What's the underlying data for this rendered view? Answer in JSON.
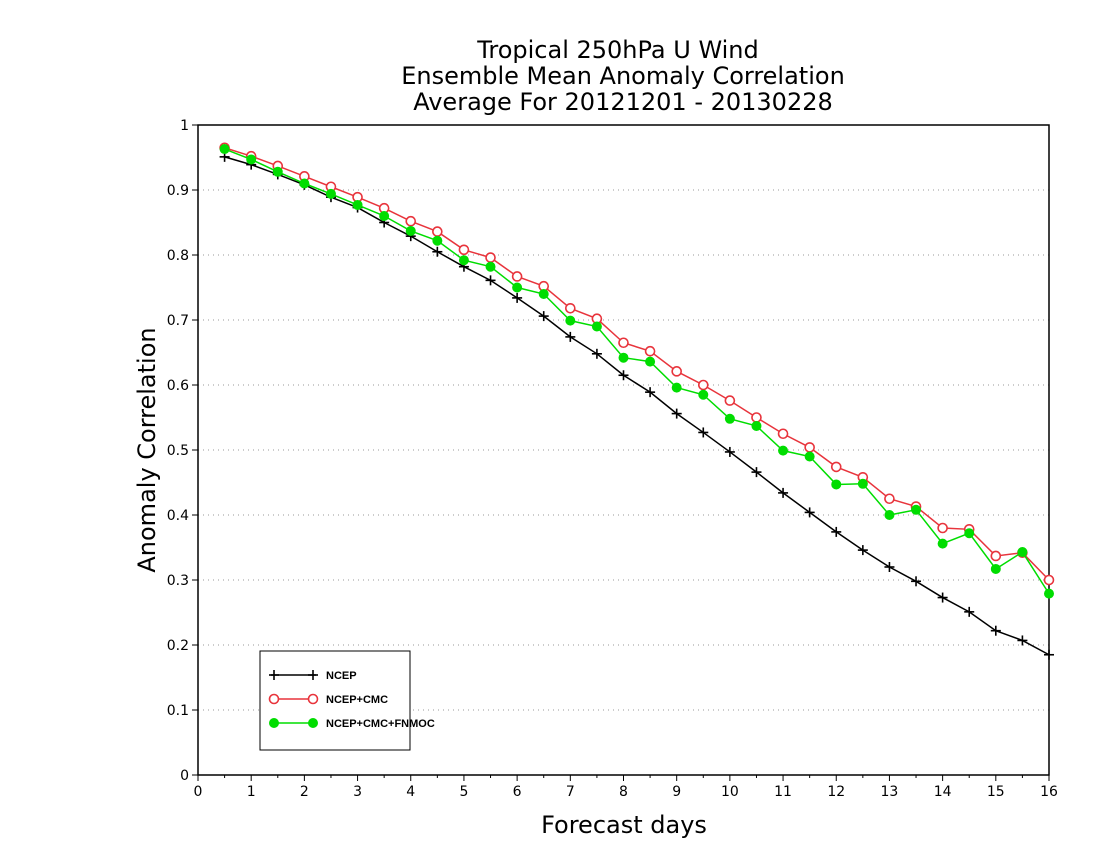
{
  "chart_data": {
    "type": "line",
    "title": [
      "Tropical 250hPa U Wind",
      "Ensemble Mean Anomaly Correlation",
      "Average For 20121201 - 20130228"
    ],
    "xlabel": "Forecast days",
    "ylabel": "Anomaly Correlation",
    "xlim": [
      0,
      16
    ],
    "ylim": [
      0,
      1
    ],
    "xticks": [
      0,
      1,
      2,
      3,
      4,
      5,
      6,
      7,
      8,
      9,
      10,
      11,
      12,
      13,
      14,
      15,
      16
    ],
    "xtick_labels": [
      "0",
      "1",
      "2",
      "3",
      "4",
      "5",
      "6",
      "7",
      "8",
      "9",
      "10",
      "11",
      "12",
      "13",
      "14",
      "15",
      "16"
    ],
    "yticks": [
      0,
      0.1,
      0.2,
      0.3,
      0.4,
      0.5,
      0.6,
      0.7,
      0.8,
      0.9,
      1
    ],
    "ytick_labels": [
      "0",
      "0.1",
      "0.2",
      "0.3",
      "0.4",
      "0.5",
      "0.6",
      "0.7",
      "0.8",
      "0.9",
      "1"
    ],
    "grid": "horizontal dotted",
    "legend_position": "bottom-left",
    "x": [
      0.5,
      1,
      1.5,
      2,
      2.5,
      3,
      3.5,
      4,
      4.5,
      5,
      5.5,
      6,
      6.5,
      7,
      7.5,
      8,
      8.5,
      9,
      9.5,
      10,
      10.5,
      11,
      11.5,
      12,
      12.5,
      13,
      13.5,
      14,
      14.5,
      15,
      15.5,
      16
    ],
    "series": [
      {
        "name": "NCEP",
        "color": "#000000",
        "marker": "plus",
        "values": [
          0.951,
          0.939,
          0.924,
          0.908,
          0.889,
          0.873,
          0.85,
          0.829,
          0.805,
          0.782,
          0.761,
          0.734,
          0.706,
          0.674,
          0.648,
          0.615,
          0.589,
          0.556,
          0.527,
          0.497,
          0.466,
          0.434,
          0.404,
          0.374,
          0.346,
          0.32,
          0.298,
          0.273,
          0.251,
          0.222,
          0.207,
          0.185
        ]
      },
      {
        "name": "NCEP+CMC",
        "color": "#e8343c",
        "marker": "open-circle",
        "values": [
          0.965,
          0.952,
          0.937,
          0.921,
          0.905,
          0.889,
          0.872,
          0.852,
          0.836,
          0.808,
          0.796,
          0.767,
          0.752,
          0.718,
          0.702,
          0.665,
          0.652,
          0.621,
          0.6,
          0.576,
          0.55,
          0.525,
          0.504,
          0.474,
          0.458,
          0.425,
          0.413,
          0.38,
          0.378,
          0.337,
          0.342,
          0.3
        ]
      },
      {
        "name": "NCEP+CMC+FNMOC",
        "color": "#00dd00",
        "marker": "filled-circle",
        "values": [
          0.963,
          0.947,
          0.928,
          0.91,
          0.894,
          0.877,
          0.86,
          0.837,
          0.822,
          0.792,
          0.782,
          0.75,
          0.74,
          0.699,
          0.69,
          0.642,
          0.636,
          0.596,
          0.585,
          0.548,
          0.537,
          0.499,
          0.49,
          0.447,
          0.448,
          0.4,
          0.408,
          0.356,
          0.372,
          0.317,
          0.343,
          0.279
        ]
      }
    ]
  }
}
